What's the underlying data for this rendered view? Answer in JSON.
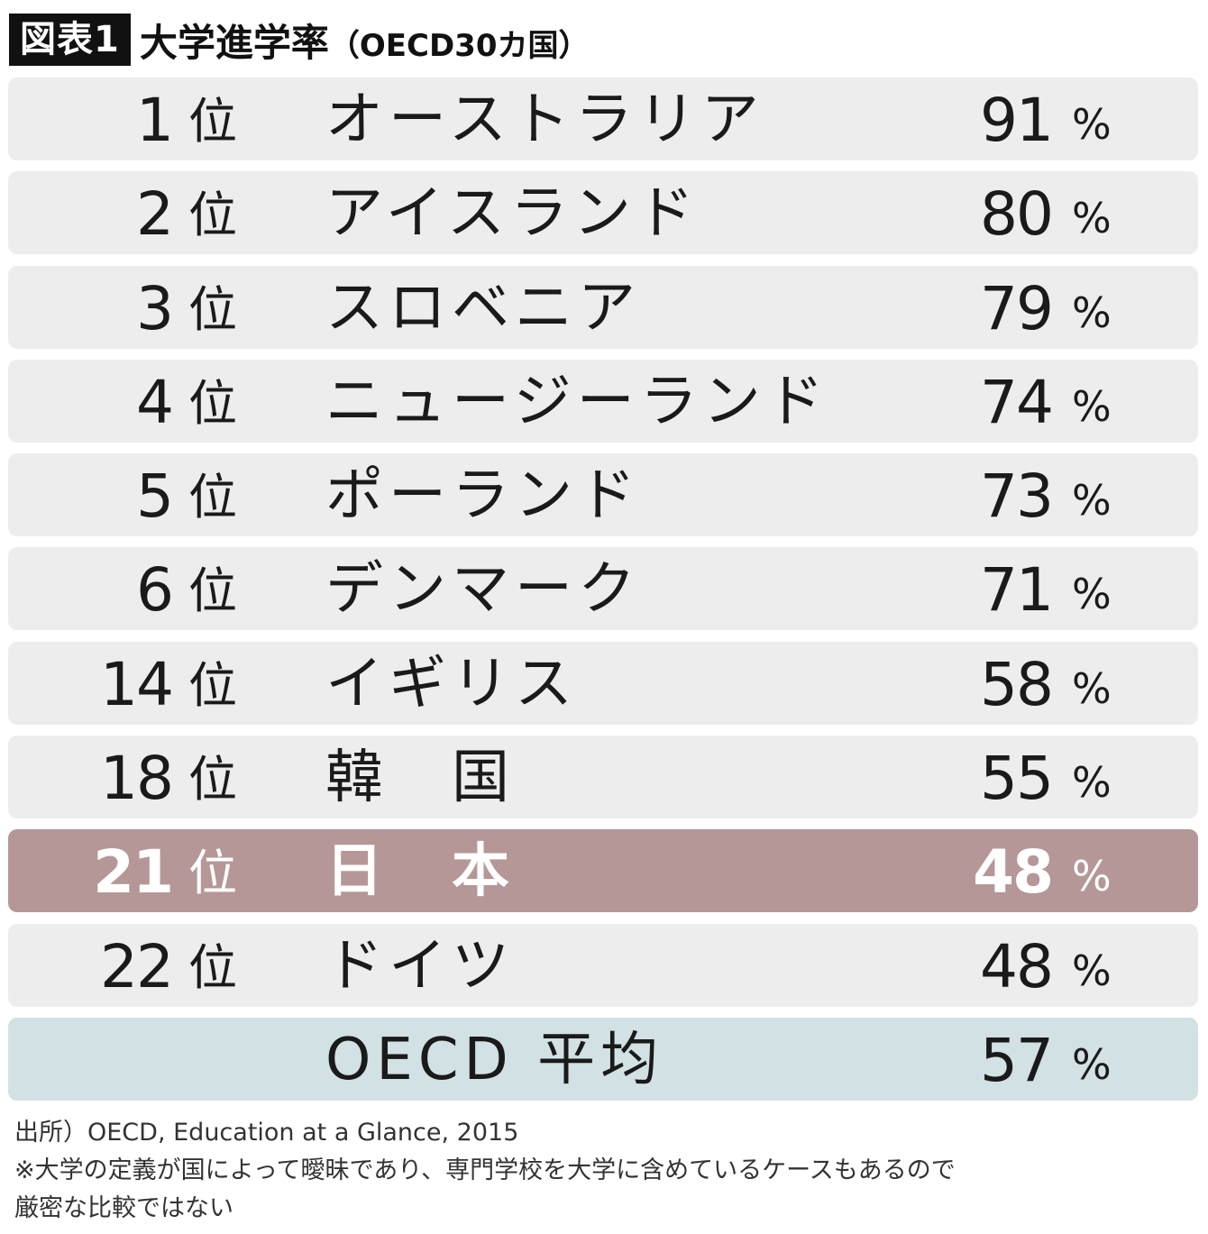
{
  "header": {
    "label": "図表1",
    "title": "大学進学率",
    "subtitle": "（OECD30カ国）"
  },
  "chart_data": {
    "type": "table",
    "title": "大学進学率（OECD30カ国）",
    "columns": [
      "rank",
      "country",
      "value"
    ],
    "rank_suffix": "位",
    "unit": "%",
    "rows": [
      {
        "rank": "1",
        "country": "オーストラリア",
        "value": 91
      },
      {
        "rank": "2",
        "country": "アイスランド",
        "value": 80
      },
      {
        "rank": "3",
        "country": "スロベニア",
        "value": 79
      },
      {
        "rank": "4",
        "country": "ニュージーランド",
        "value": 74
      },
      {
        "rank": "5",
        "country": "ポーランド",
        "value": 73
      },
      {
        "rank": "6",
        "country": "デンマーク",
        "value": 71
      },
      {
        "rank": "14",
        "country": "イギリス",
        "value": 58
      },
      {
        "rank": "18",
        "country": "韓　国",
        "value": 55
      },
      {
        "rank": "21",
        "country": "日　本",
        "value": 48,
        "highlight": true
      },
      {
        "rank": "22",
        "country": "ドイツ",
        "value": 48
      }
    ],
    "average": {
      "rank": "",
      "country": "OECD 平均",
      "value": 57
    }
  },
  "colors": {
    "row_background": "#ededed",
    "highlight_background": "#b59798",
    "average_background": "#d2e1e3",
    "label_background": "#111111"
  },
  "notes": {
    "source": "出所）OECD, Education at a Glance, 2015",
    "note_line1": "※大学の定義が国によって曖昧であり、専門学校を大学に含めているケースもあるので",
    "note_line2": "厳密な比較ではない"
  }
}
